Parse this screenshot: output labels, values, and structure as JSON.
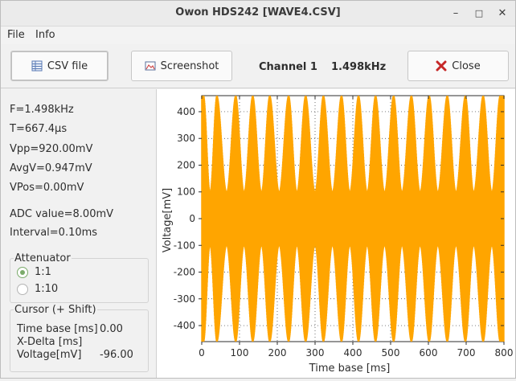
{
  "window": {
    "title": "Owon HDS242 [WAVE4.CSV]",
    "minimize": "–",
    "maximize": "□",
    "close": "✕"
  },
  "menu": {
    "file": "File",
    "info": "Info"
  },
  "toolbar": {
    "csv_label": "CSV file",
    "screenshot_label": "Screenshot",
    "channel": "Channel 1",
    "frequency": "1.498kHz",
    "close_label": "Close"
  },
  "measurements": {
    "f": "F=1.498kHz",
    "t": "T=667.4µs",
    "vpp": "Vpp=920.00mV",
    "avgv": "AvgV=0.947mV",
    "vpos": "VPos=0.00mV",
    "adc": "ADC value=8.00mV",
    "interval": "Interval=0.10ms"
  },
  "attenuator": {
    "title": "Attenuator",
    "options": [
      {
        "label": "1:1",
        "checked": true
      },
      {
        "label": "1:10",
        "checked": false
      }
    ]
  },
  "cursor": {
    "title": "Cursor (+ Shift)",
    "timebase_label": "Time base [ms]",
    "timebase_value": "0.00",
    "xdelta_label": "X-Delta [ms]",
    "xdelta_value": "",
    "voltage_label": "Voltage[mV]",
    "voltage_value": "-96.00"
  },
  "chart_data": {
    "type": "line",
    "xlabel": "Time base [ms]",
    "ylabel": "Voltage[mV]",
    "xlim": [
      0,
      800
    ],
    "ylim": [
      -460,
      460
    ],
    "xticks": [
      0,
      100,
      200,
      300,
      400,
      500,
      600,
      700,
      800
    ],
    "yticks": [
      -400,
      -300,
      -200,
      -100,
      0,
      100,
      200,
      300,
      400
    ],
    "grid": true,
    "series": [
      {
        "color": "#ffa500",
        "carrier_frequency_khz": 1.498,
        "envelope_peaks_ms": [
          5,
          40,
          90,
          135,
          180,
          230,
          275,
          322,
          370,
          415,
          460,
          508,
          555,
          602,
          650,
          698,
          745,
          790
        ],
        "envelope_troughs_ms": [
          22,
          66,
          112,
          158,
          205,
          252,
          300,
          346,
          392,
          438,
          484,
          530,
          578,
          625,
          673,
          720,
          768
        ],
        "peak_amplitude_mv": 460,
        "trough_amplitude_mv": 100
      }
    ]
  }
}
